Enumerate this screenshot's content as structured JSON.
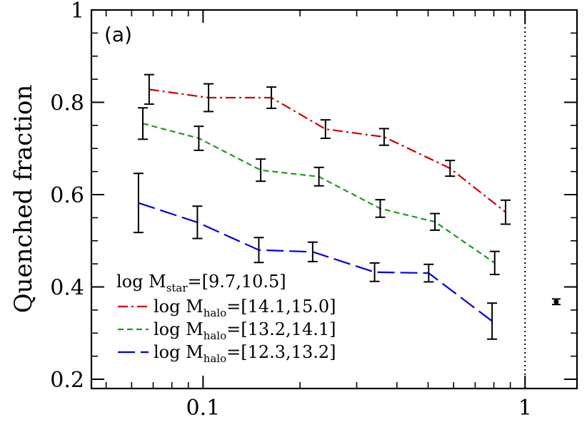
{
  "chart_data": {
    "type": "line",
    "panel_label": "(a)",
    "ylabel": "Quenched fraction",
    "xlabel": "",
    "xscale": "log",
    "xlim": [
      0.045,
      1.45
    ],
    "ylim": [
      0.18,
      1.0
    ],
    "x_ticks": [
      {
        "value": 0.1,
        "label": "0.1"
      },
      {
        "value": 1,
        "label": "1"
      }
    ],
    "y_ticks": [
      {
        "value": 0.2,
        "label": "0.2"
      },
      {
        "value": 0.4,
        "label": "0.4"
      },
      {
        "value": 0.6,
        "label": "0.6"
      },
      {
        "value": 0.8,
        "label": "0.8"
      },
      {
        "value": 1.0,
        "label": "1"
      }
    ],
    "reference_line_x": 1,
    "legend": {
      "title": {
        "main": "log M",
        "sub": "star",
        "range": "=[9.7,10.5]"
      },
      "placement": "lower-left"
    },
    "series": [
      {
        "legend_main": "log M",
        "legend_sub": "halo",
        "legend_range": "=[14.1,15.0]",
        "color": "#cc0000",
        "dash": "14 5 3 5",
        "x": [
          0.068,
          0.104,
          0.163,
          0.24,
          0.365,
          0.585,
          0.87
        ],
        "y": [
          0.828,
          0.81,
          0.81,
          0.742,
          0.725,
          0.657,
          0.562
        ],
        "err": [
          0.032,
          0.03,
          0.023,
          0.02,
          0.018,
          0.017,
          0.026
        ]
      },
      {
        "legend_main": "log M",
        "legend_sub": "halo",
        "legend_range": "=[13.2,14.1]",
        "color": "#1a9e1a",
        "dash": "8 5",
        "x": [
          0.065,
          0.097,
          0.151,
          0.229,
          0.355,
          0.525,
          0.805
        ],
        "y": [
          0.754,
          0.722,
          0.653,
          0.639,
          0.57,
          0.541,
          0.452
        ],
        "err": [
          0.034,
          0.026,
          0.024,
          0.02,
          0.019,
          0.018,
          0.025
        ]
      },
      {
        "legend_main": "log M",
        "legend_sub": "halo",
        "legend_range": "=[12.3,13.2]",
        "color": "#0000dd",
        "dash": "24 8",
        "x": [
          0.063,
          0.096,
          0.149,
          0.219,
          0.341,
          0.502,
          0.79
        ],
        "y": [
          0.582,
          0.54,
          0.48,
          0.476,
          0.432,
          0.43,
          0.326
        ],
        "err": [
          0.064,
          0.035,
          0.027,
          0.021,
          0.02,
          0.019,
          0.039
        ]
      }
    ],
    "outlier_point": {
      "x": 1.25,
      "y": 0.368,
      "err": 0.006
    }
  }
}
